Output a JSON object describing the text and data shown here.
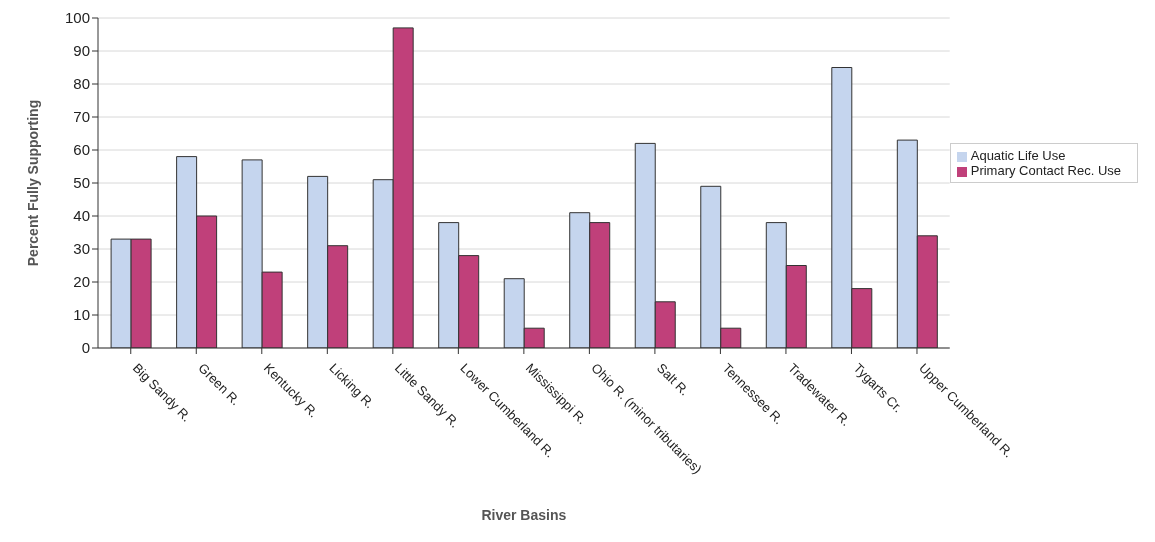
{
  "chart_data": {
    "type": "bar",
    "xlabel": "River Basins",
    "ylabel": "Percent Fully Supporting",
    "categories": [
      "Big Sandy R.",
      "Green R.",
      "Kentucky R.",
      "Licking R.",
      "Little Sandy R.",
      "Lower Cumberland R.",
      "Mississippi R.",
      "Ohio R. (minor tributaries)",
      "Salt R.",
      "Tennessee R.",
      "Tradewater R.",
      "Tygarts Cr.",
      "Upper Cumberland R."
    ],
    "series": [
      {
        "name": "Aquatic Life Use",
        "color": "#c5d5ee",
        "values": [
          33,
          58,
          57,
          52,
          51,
          38,
          21,
          41,
          62,
          49,
          38,
          85,
          63
        ]
      },
      {
        "name": "Primary Contact Rec. Use",
        "color": "#c0407a",
        "values": [
          33,
          40,
          23,
          31,
          97,
          28,
          6,
          38,
          14,
          6,
          25,
          18,
          34
        ]
      }
    ],
    "ylim": [
      0,
      100
    ],
    "yticks": [
      0,
      10,
      20,
      30,
      40,
      50,
      60,
      70,
      80,
      90,
      100
    ],
    "grid": "y",
    "legend": "right"
  }
}
